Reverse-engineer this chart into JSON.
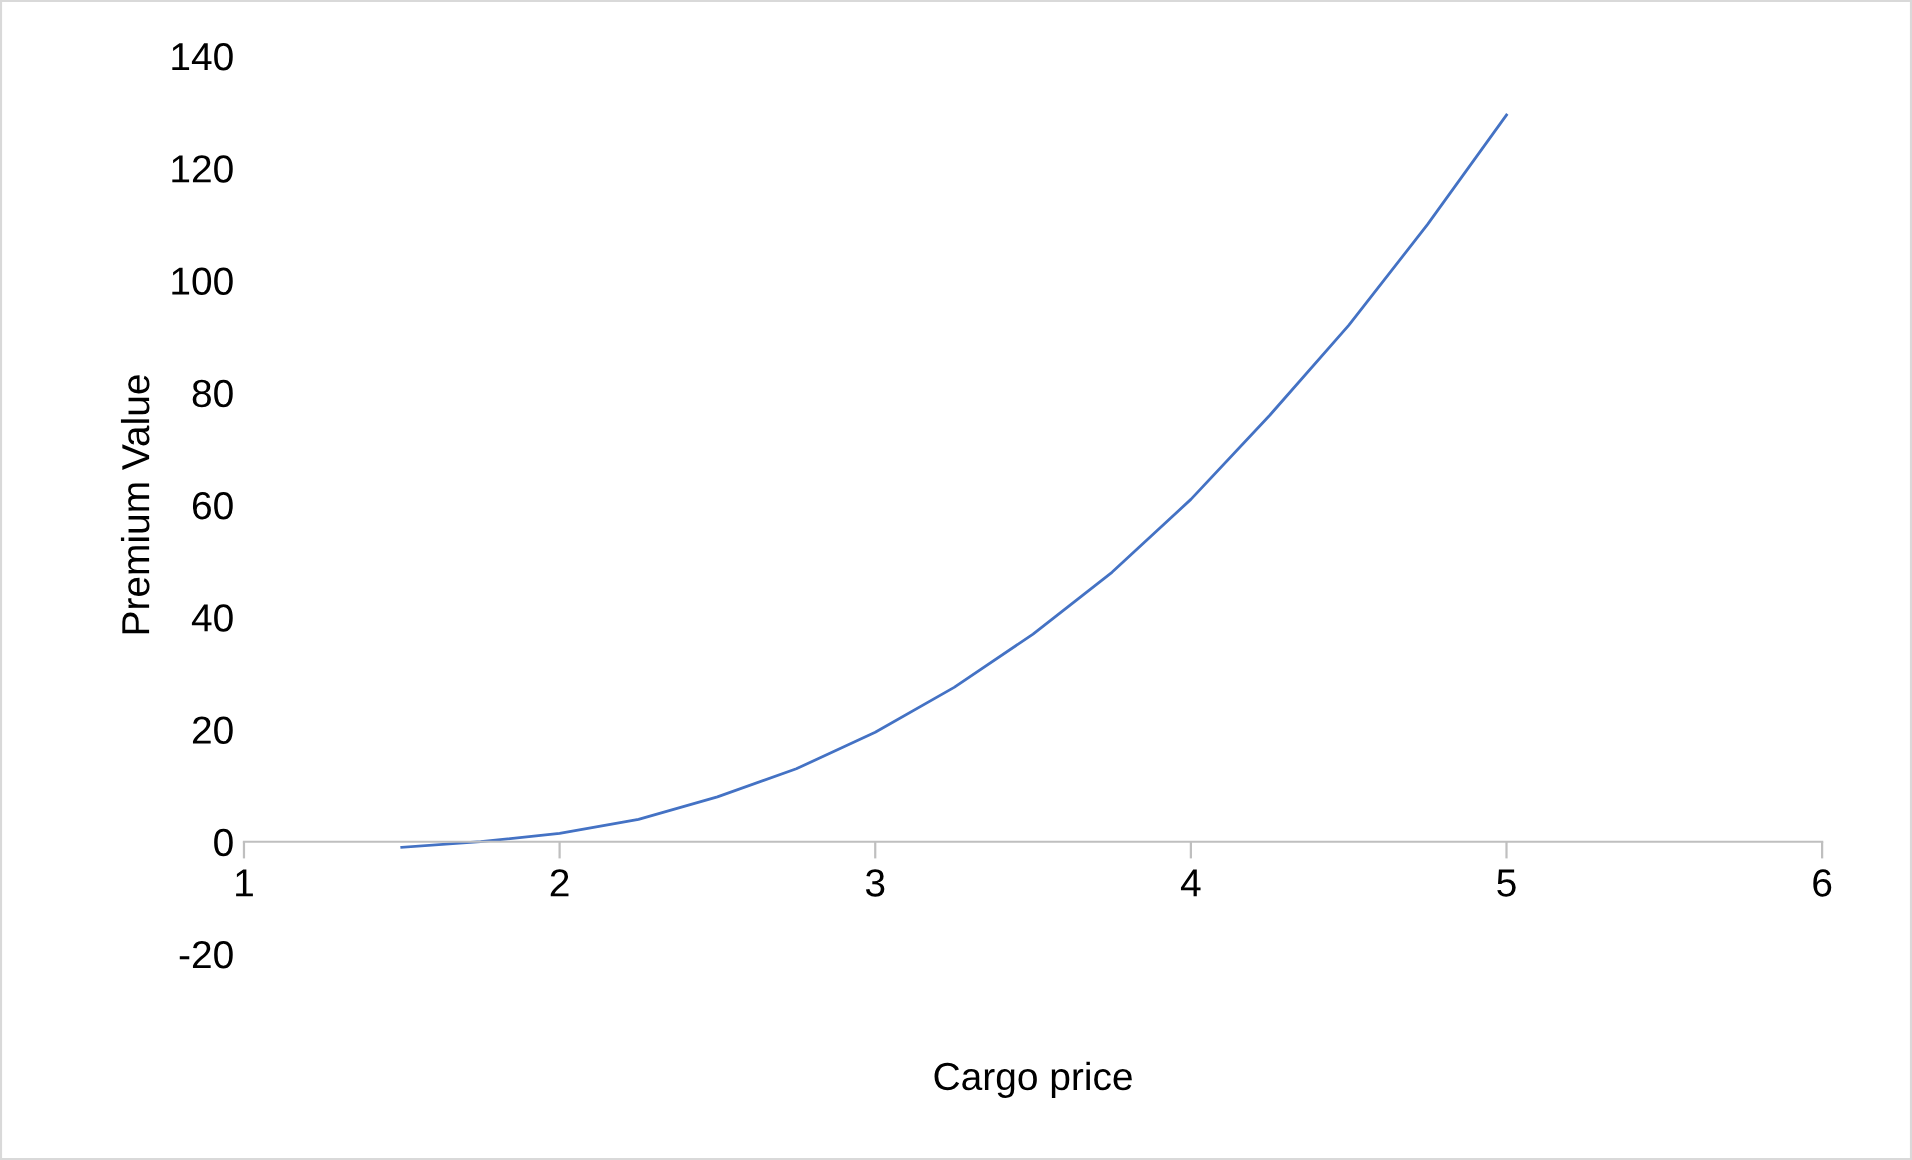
{
  "chart_data": {
    "type": "line",
    "xlabel": "Cargo price",
    "ylabel": "Premium Value",
    "x": [
      1.5,
      1.75,
      2,
      2.25,
      2.5,
      2.75,
      3,
      3.25,
      3.5,
      3.75,
      4,
      4.25,
      4.5,
      4.75,
      5
    ],
    "series": [
      {
        "color": "#4472c4",
        "values": [
          -1,
          0,
          1.5,
          4,
          8,
          13,
          19.5,
          27.5,
          37,
          48,
          61,
          76,
          92,
          110,
          129.5
        ]
      }
    ],
    "xlim": [
      1,
      6
    ],
    "xticks": [
      1,
      2,
      3,
      4,
      5,
      6
    ],
    "ylim": [
      -20,
      140
    ],
    "yticks": [
      -20,
      0,
      20,
      40,
      60,
      80,
      100,
      120,
      140
    ],
    "grid": false,
    "legend": false,
    "marker": "none",
    "line_style": "solid"
  }
}
